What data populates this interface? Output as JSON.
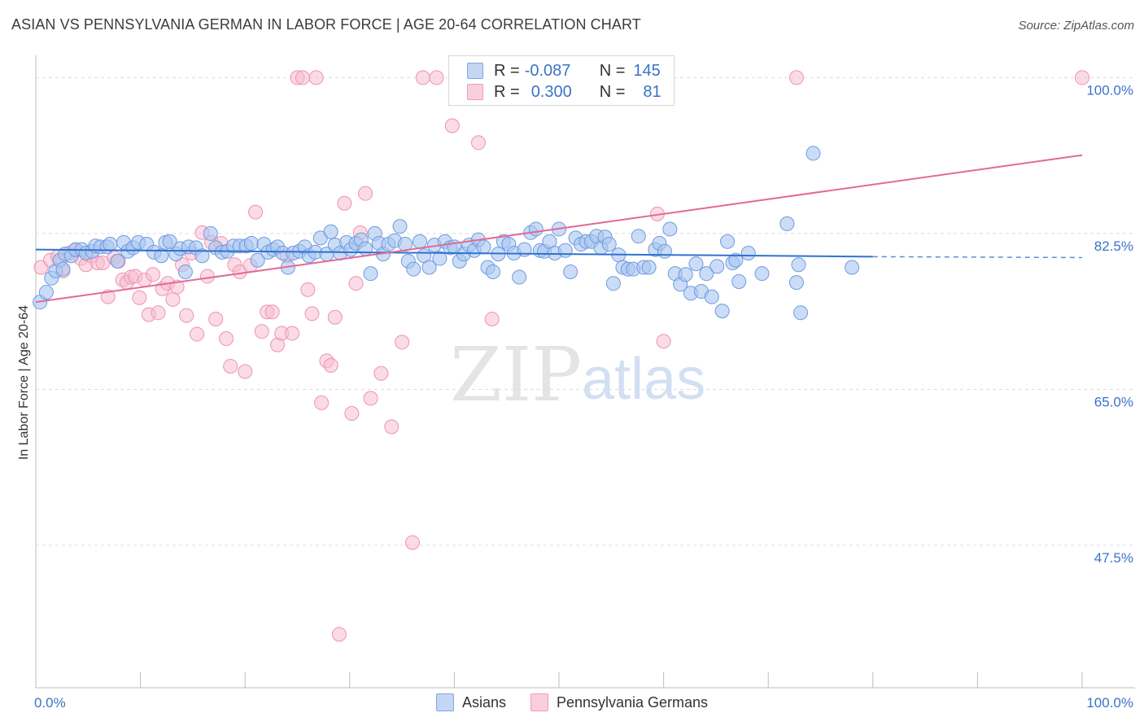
{
  "title": "ASIAN VS PENNSYLVANIA GERMAN IN LABOR FORCE | AGE 20-64 CORRELATION CHART",
  "source": "Source: ZipAtlas.com",
  "watermark": {
    "zip": "ZIP",
    "atlas": "atlas"
  },
  "legend": {
    "r_label": "R =",
    "n_label": "N =",
    "series1": {
      "r": "-0.087",
      "n": "145"
    },
    "series2": {
      "r": "0.300",
      "n": "81"
    }
  },
  "colors": {
    "asian_fill": "#a9c6f0",
    "asian_stroke": "#6f9ae0",
    "asian_line": "#2f72d0",
    "pg_fill": "#f7bdd0",
    "pg_stroke": "#ee93b2",
    "pg_line": "#e26a97",
    "tick_label": "#3a73c8",
    "grid": "#dcdcdc"
  },
  "chart_data": {
    "type": "scatter",
    "title": "ASIAN VS PENNSYLVANIA GERMAN IN LABOR FORCE | AGE 20-64 CORRELATION CHART",
    "xlabel": "",
    "ylabel": "In Labor Force | Age 20-64",
    "x_tick_labels": [
      "0.0%",
      "100.0%"
    ],
    "y_tick_labels": [
      "100.0%",
      "82.5%",
      "65.0%",
      "47.5%"
    ],
    "xlim": [
      0,
      100
    ],
    "ylim": [
      31.5,
      101.5
    ],
    "grid": "horizontal dashed",
    "legend_position": "top-center",
    "series": [
      {
        "name": "Asians",
        "r": -0.087,
        "n": 145,
        "trend": {
          "x0": 0,
          "y0": 80.7,
          "x1": 80,
          "y1": 79.9,
          "dashed_to": 100,
          "dashed_y": 79.8
        },
        "points": [
          [
            0.4,
            74.8
          ],
          [
            1.0,
            75.9
          ],
          [
            1.5,
            77.5
          ],
          [
            1.9,
            78.3
          ],
          [
            2.3,
            79.5
          ],
          [
            2.6,
            78.5
          ],
          [
            2.8,
            80.2
          ],
          [
            3.4,
            80.0
          ],
          [
            3.8,
            80.7
          ],
          [
            4.4,
            80.7
          ],
          [
            4.8,
            80.3
          ],
          [
            5.4,
            80.5
          ],
          [
            5.7,
            81.1
          ],
          [
            6.2,
            81.0
          ],
          [
            6.8,
            81.0
          ],
          [
            7.1,
            81.3
          ],
          [
            7.8,
            79.4
          ],
          [
            8.4,
            81.5
          ],
          [
            8.8,
            80.5
          ],
          [
            9.3,
            80.9
          ],
          [
            9.8,
            81.5
          ],
          [
            10.6,
            81.3
          ],
          [
            11.3,
            80.4
          ],
          [
            12.0,
            80.0
          ],
          [
            12.4,
            81.5
          ],
          [
            12.8,
            81.6
          ],
          [
            13.4,
            80.2
          ],
          [
            13.8,
            80.8
          ],
          [
            14.3,
            78.2
          ],
          [
            14.6,
            81.0
          ],
          [
            15.3,
            80.9
          ],
          [
            15.9,
            80.0
          ],
          [
            16.7,
            82.5
          ],
          [
            17.2,
            80.9
          ],
          [
            17.8,
            80.4
          ],
          [
            18.3,
            80.5
          ],
          [
            18.9,
            81.1
          ],
          [
            19.5,
            81.1
          ],
          [
            20.1,
            81.1
          ],
          [
            20.6,
            81.4
          ],
          [
            21.2,
            79.5
          ],
          [
            21.8,
            81.3
          ],
          [
            22.2,
            80.4
          ],
          [
            22.7,
            80.7
          ],
          [
            23.1,
            81.0
          ],
          [
            23.6,
            80.3
          ],
          [
            24.1,
            78.7
          ],
          [
            24.6,
            80.3
          ],
          [
            25.2,
            80.5
          ],
          [
            25.7,
            81.0
          ],
          [
            26.1,
            80.0
          ],
          [
            26.7,
            80.4
          ],
          [
            27.2,
            82.0
          ],
          [
            27.8,
            80.2
          ],
          [
            28.2,
            82.7
          ],
          [
            28.6,
            81.2
          ],
          [
            29.1,
            80.3
          ],
          [
            29.7,
            81.5
          ],
          [
            30.1,
            80.7
          ],
          [
            30.6,
            81.4
          ],
          [
            31.1,
            81.8
          ],
          [
            31.5,
            80.8
          ],
          [
            32.0,
            78.0
          ],
          [
            32.4,
            82.5
          ],
          [
            32.8,
            81.4
          ],
          [
            33.2,
            80.2
          ],
          [
            33.7,
            81.3
          ],
          [
            34.3,
            81.7
          ],
          [
            34.8,
            83.3
          ],
          [
            35.3,
            81.3
          ],
          [
            35.6,
            79.4
          ],
          [
            36.1,
            78.5
          ],
          [
            36.7,
            81.6
          ],
          [
            37.1,
            80.0
          ],
          [
            37.6,
            78.7
          ],
          [
            38.1,
            81.2
          ],
          [
            38.6,
            79.7
          ],
          [
            39.1,
            81.6
          ],
          [
            39.6,
            80.9
          ],
          [
            40.0,
            81.0
          ],
          [
            40.5,
            79.4
          ],
          [
            40.9,
            80.2
          ],
          [
            41.4,
            81.2
          ],
          [
            41.9,
            80.6
          ],
          [
            42.3,
            81.8
          ],
          [
            42.8,
            81.0
          ],
          [
            43.2,
            78.7
          ],
          [
            43.7,
            78.2
          ],
          [
            44.2,
            80.2
          ],
          [
            44.7,
            81.6
          ],
          [
            45.2,
            81.3
          ],
          [
            45.7,
            80.3
          ],
          [
            46.2,
            77.6
          ],
          [
            46.7,
            80.7
          ],
          [
            47.3,
            82.6
          ],
          [
            47.8,
            83.0
          ],
          [
            48.2,
            80.6
          ],
          [
            48.6,
            80.5
          ],
          [
            49.1,
            81.6
          ],
          [
            49.6,
            80.3
          ],
          [
            50.0,
            83.0
          ],
          [
            50.6,
            80.6
          ],
          [
            51.1,
            78.2
          ],
          [
            51.6,
            82.0
          ],
          [
            52.1,
            81.3
          ],
          [
            52.6,
            81.6
          ],
          [
            53.1,
            81.6
          ],
          [
            53.6,
            82.2
          ],
          [
            54.0,
            80.9
          ],
          [
            54.4,
            82.1
          ],
          [
            54.8,
            81.3
          ],
          [
            55.2,
            76.9
          ],
          [
            55.7,
            80.1
          ],
          [
            56.1,
            78.7
          ],
          [
            56.6,
            78.5
          ],
          [
            57.1,
            78.5
          ],
          [
            57.6,
            82.2
          ],
          [
            58.1,
            78.7
          ],
          [
            58.6,
            78.7
          ],
          [
            59.2,
            80.7
          ],
          [
            59.6,
            81.4
          ],
          [
            60.1,
            80.5
          ],
          [
            60.6,
            83.0
          ],
          [
            61.1,
            78.0
          ],
          [
            61.6,
            76.8
          ],
          [
            62.1,
            77.9
          ],
          [
            62.6,
            75.8
          ],
          [
            63.1,
            79.1
          ],
          [
            63.6,
            76.0
          ],
          [
            64.1,
            78.0
          ],
          [
            64.6,
            75.4
          ],
          [
            65.1,
            78.8
          ],
          [
            65.6,
            73.8
          ],
          [
            66.1,
            81.6
          ],
          [
            66.6,
            79.2
          ],
          [
            66.9,
            79.5
          ],
          [
            67.2,
            77.1
          ],
          [
            68.1,
            80.3
          ],
          [
            69.4,
            78.0
          ],
          [
            71.8,
            83.6
          ],
          [
            72.7,
            77.0
          ],
          [
            72.9,
            79.0
          ],
          [
            73.1,
            73.6
          ],
          [
            74.3,
            91.5
          ],
          [
            78.0,
            78.7
          ]
        ]
      },
      {
        "name": "Pennsylvania Germans",
        "r": 0.3,
        "n": 81,
        "trend": {
          "x0": 0,
          "y0": 74.8,
          "x1": 100,
          "y1": 91.3
        },
        "points": [
          [
            0.5,
            78.7
          ],
          [
            1.4,
            79.5
          ],
          [
            2.1,
            79.9
          ],
          [
            2.6,
            78.3
          ],
          [
            3.2,
            80.3
          ],
          [
            3.8,
            80.6
          ],
          [
            4.3,
            79.7
          ],
          [
            4.8,
            79.0
          ],
          [
            5.3,
            80.0
          ],
          [
            5.9,
            79.2
          ],
          [
            6.4,
            79.2
          ],
          [
            6.9,
            75.4
          ],
          [
            7.5,
            79.8
          ],
          [
            7.9,
            79.4
          ],
          [
            8.3,
            77.3
          ],
          [
            8.7,
            77.0
          ],
          [
            9.1,
            77.6
          ],
          [
            9.5,
            77.7
          ],
          [
            9.9,
            75.3
          ],
          [
            10.4,
            77.3
          ],
          [
            10.8,
            73.4
          ],
          [
            11.2,
            77.9
          ],
          [
            11.7,
            73.6
          ],
          [
            12.1,
            76.3
          ],
          [
            12.6,
            76.9
          ],
          [
            13.1,
            75.1
          ],
          [
            13.5,
            76.5
          ],
          [
            14.0,
            79.0
          ],
          [
            14.4,
            73.3
          ],
          [
            14.9,
            80.3
          ],
          [
            15.4,
            71.2
          ],
          [
            15.9,
            82.6
          ],
          [
            16.4,
            77.7
          ],
          [
            16.8,
            81.5
          ],
          [
            17.2,
            72.9
          ],
          [
            17.7,
            81.4
          ],
          [
            18.2,
            70.7
          ],
          [
            18.6,
            67.6
          ],
          [
            19.0,
            79.0
          ],
          [
            19.5,
            78.2
          ],
          [
            20.0,
            67.0
          ],
          [
            20.5,
            78.9
          ],
          [
            21.0,
            84.9
          ],
          [
            21.6,
            71.5
          ],
          [
            22.1,
            73.7
          ],
          [
            22.6,
            73.7
          ],
          [
            23.1,
            70.0
          ],
          [
            23.5,
            71.3
          ],
          [
            24.0,
            80.0
          ],
          [
            24.5,
            71.3
          ],
          [
            25.0,
            100.0
          ],
          [
            25.5,
            100.0
          ],
          [
            26.0,
            76.2
          ],
          [
            26.4,
            73.5
          ],
          [
            26.8,
            100.0
          ],
          [
            27.3,
            63.5
          ],
          [
            27.8,
            68.2
          ],
          [
            28.2,
            67.7
          ],
          [
            28.6,
            73.1
          ],
          [
            29.0,
            37.5
          ],
          [
            29.5,
            85.9
          ],
          [
            30.2,
            62.3
          ],
          [
            30.6,
            76.9
          ],
          [
            31.0,
            82.6
          ],
          [
            31.5,
            87.0
          ],
          [
            32.0,
            64.0
          ],
          [
            33.0,
            66.8
          ],
          [
            34.0,
            60.8
          ],
          [
            35.0,
            70.3
          ],
          [
            36.0,
            47.8
          ],
          [
            37.0,
            100.0
          ],
          [
            38.3,
            100.0
          ],
          [
            39.8,
            94.6
          ],
          [
            42.3,
            92.7
          ],
          [
            43.6,
            72.9
          ],
          [
            46.5,
            100.0
          ],
          [
            55.0,
            100.0
          ],
          [
            59.4,
            84.7
          ],
          [
            60.0,
            70.4
          ],
          [
            72.7,
            100.0
          ],
          [
            100.0,
            100.0
          ]
        ]
      }
    ]
  },
  "bottom_legend": {
    "item1": "Asians",
    "item2": "Pennsylvania Germans"
  }
}
